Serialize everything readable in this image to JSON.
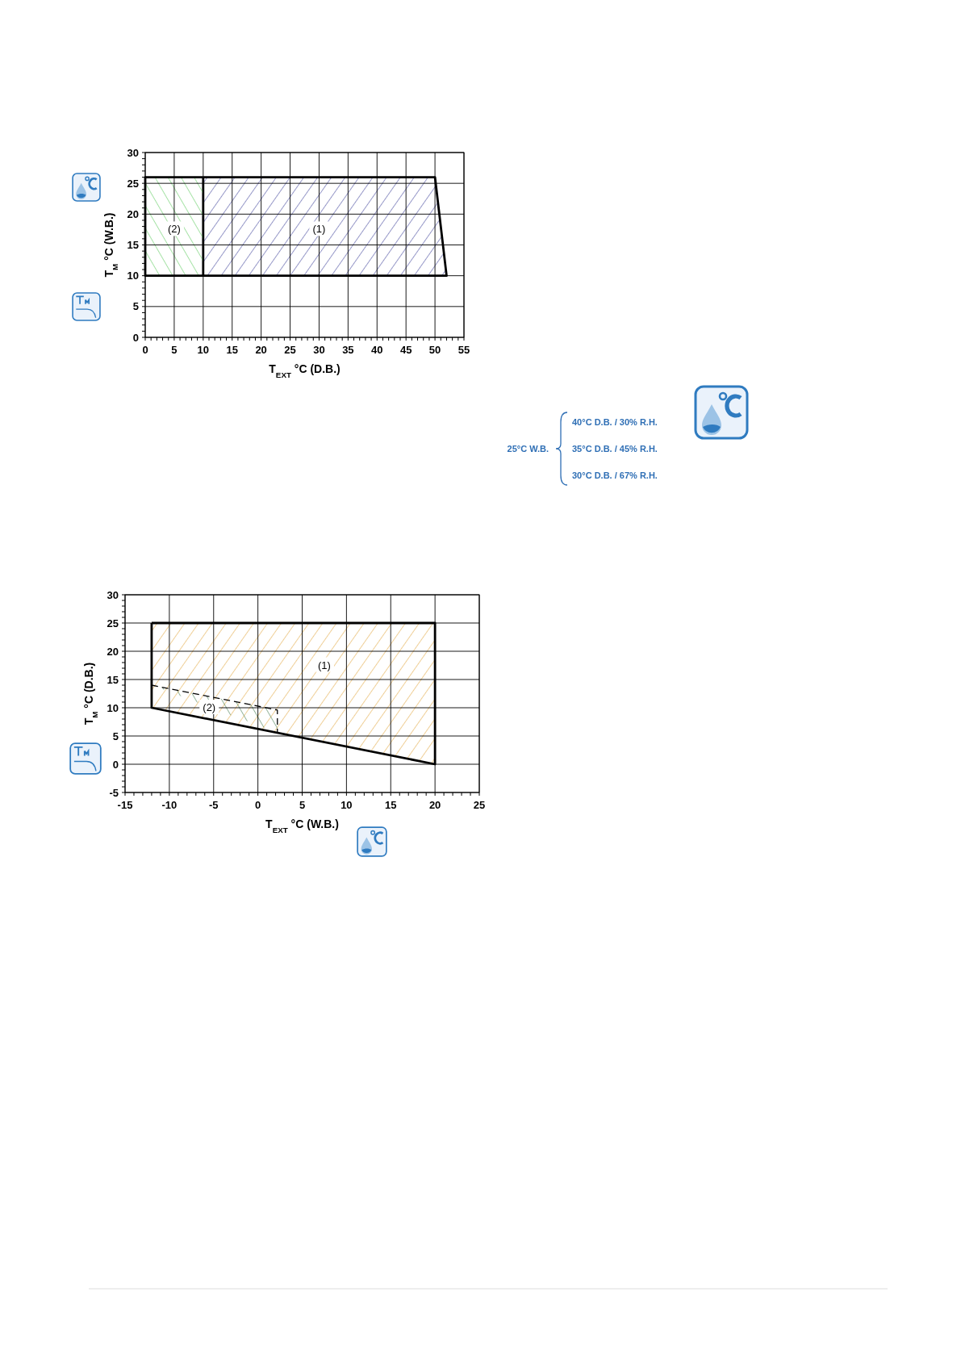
{
  "chart_data": [
    {
      "type": "area",
      "xlabel": "T$_{EXT}$ °C (D.B.)",
      "ylabel": "T$_{M}$ °C (W.B.)",
      "xlim": [
        0,
        55
      ],
      "xticks": [
        0,
        5,
        10,
        15,
        20,
        25,
        30,
        35,
        40,
        45,
        50,
        55
      ],
      "ylim": [
        0,
        30
      ],
      "yticks": [
        0,
        5,
        10,
        15,
        20,
        25,
        30
      ],
      "grid": true,
      "colors": [
        "#2e3192",
        "#4cc64c"
      ],
      "series": [
        {
          "color": "#000000",
          "x": [
            10,
            50,
            52,
            10,
            10
          ],
          "values": [
            26,
            26,
            10,
            10,
            26
          ]
        },
        {
          "color": "#000000",
          "x": [
            10,
            0,
            0,
            10
          ],
          "values": [
            26,
            26,
            10,
            10
          ]
        }
      ],
      "annotations": [
        {
          "text": "(1)",
          "x": 30,
          "y": 17.5
        },
        {
          "text": "(2)",
          "x": 5,
          "y": 17.5
        },
        "25°C W.B.",
        "40°C D.B. / 30% R.H.",
        "35°C D.B. / 45% R.H.",
        "30°C D.B. / 67% R.H."
      ]
    },
    {
      "type": "area",
      "xlabel": "T$_{EXT}$ °C (W.B.)",
      "ylabel": "T$_{M}$ °C (D.B.)",
      "xlim": [
        -15,
        25
      ],
      "xticks": [
        -15,
        -10,
        -5,
        0,
        5,
        10,
        15,
        20,
        25
      ],
      "ylim": [
        -5,
        30
      ],
      "yticks": [
        -5,
        0,
        5,
        10,
        15,
        20,
        25,
        30
      ],
      "grid": true,
      "colors": [
        "#e0a030",
        "#2e6b3a"
      ],
      "series": [
        {
          "color": "#000000",
          "x": [
            -12,
            20,
            20,
            -12,
            -12
          ],
          "values": [
            25,
            25,
            0,
            10,
            25
          ]
        },
        {
          "color": "#000000",
          "x": [
            -12,
            2.2,
            2.2
          ],
          "values": [
            14,
            9.6,
            5.6
          ],
          "line_style": "dashed"
        }
      ],
      "annotations": [
        {
          "text": "(1)",
          "x": 7.5,
          "y": 17.5
        },
        {
          "text": "(2)",
          "x": -5.5,
          "y": 10
        }
      ]
    }
  ]
}
